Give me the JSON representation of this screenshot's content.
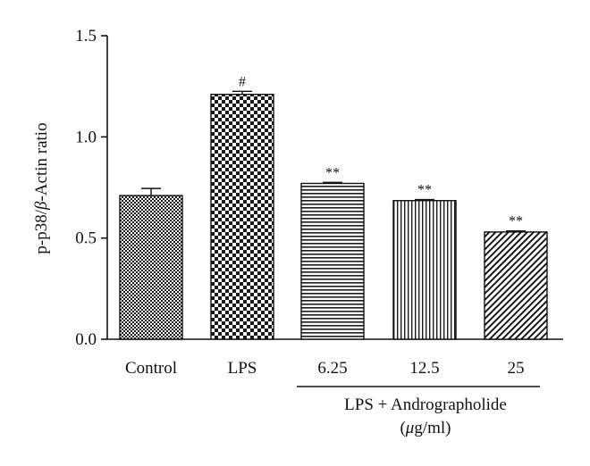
{
  "chart_data": {
    "type": "bar",
    "ylabel_parts": [
      "p-p38/",
      "β",
      "-Actin ratio"
    ],
    "ylim": [
      0,
      1.5
    ],
    "yticks": [
      "0.0",
      "0.5",
      "1.0",
      "1.5"
    ],
    "categories": [
      "Control",
      "LPS",
      "6.25",
      "12.5",
      "25"
    ],
    "values": [
      0.71,
      1.21,
      0.77,
      0.685,
      0.53
    ],
    "errors": [
      0.035,
      0.015,
      0.005,
      0.005,
      0.005
    ],
    "annotations": [
      "",
      "#",
      "**",
      "**",
      "**"
    ],
    "patterns": [
      "crosshatch",
      "checker",
      "horizontal",
      "vertical",
      "diagonal"
    ],
    "group_label": {
      "line1": "LPS + Andrographolide",
      "line2_open": "(",
      "line2_mu": "μ",
      "line2_rest": "g/ml)"
    },
    "grid": false,
    "bar_color": "#1a1a1a"
  }
}
